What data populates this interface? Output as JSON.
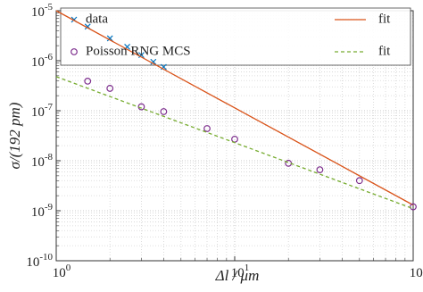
{
  "chart_data": {
    "type": "line",
    "x_label": "Δl / μm",
    "y_label": "σ/(192 pm)",
    "xscale": "log",
    "yscale": "log",
    "xlim": [
      1,
      100
    ],
    "ylim": [
      1e-10,
      1e-05
    ],
    "xticks": [
      {
        "value": 1,
        "label": "10",
        "exponent": "0"
      },
      {
        "value": 10,
        "label": "10",
        "exponent": "1"
      },
      {
        "value": 100,
        "label": "10",
        "exponent": "2"
      }
    ],
    "yticks": [
      {
        "value": 1e-10,
        "label": "10",
        "exponent": "-10"
      },
      {
        "value": 1e-09,
        "label": "10",
        "exponent": "-9"
      },
      {
        "value": 1e-08,
        "label": "10",
        "exponent": "-8"
      },
      {
        "value": 1e-07,
        "label": "10",
        "exponent": "-7"
      },
      {
        "value": 1e-06,
        "label": "10",
        "exponent": "-6"
      },
      {
        "value": 1e-05,
        "label": "10",
        "exponent": "-5"
      }
    ],
    "grid": true,
    "minor_grid": true,
    "legend": "top",
    "series": [
      {
        "name": "data",
        "color": "#0072BD",
        "marker": "x",
        "x": [
          1.5,
          2,
          2.5,
          3,
          3.5,
          4
        ],
        "values": [
          4.8e-06,
          2.8e-06,
          1.9e-06,
          1.3e-06,
          9.5e-07,
          7.5e-07
        ]
      },
      {
        "name": "fit",
        "color": "#D95319",
        "line": "solid",
        "x": [
          1,
          100
        ],
        "values": [
          1e-05,
          1.3e-09
        ]
      },
      {
        "name": "Poisson RNG MCS",
        "color": "#7E2F8E",
        "marker": "o",
        "x": [
          1.5,
          2,
          3,
          4,
          7,
          10,
          20,
          30,
          50,
          100
        ],
        "values": [
          3.9e-07,
          2.8e-07,
          1.2e-07,
          9.6e-08,
          4.4e-08,
          2.7e-08,
          8.9e-09,
          6.6e-09,
          4e-09,
          1.2e-09
        ]
      },
      {
        "name": "fit",
        "color": "#77AC30",
        "line": "dashed",
        "x": [
          1,
          100
        ],
        "values": [
          4.8e-07,
          1.1e-09
        ]
      }
    ]
  }
}
